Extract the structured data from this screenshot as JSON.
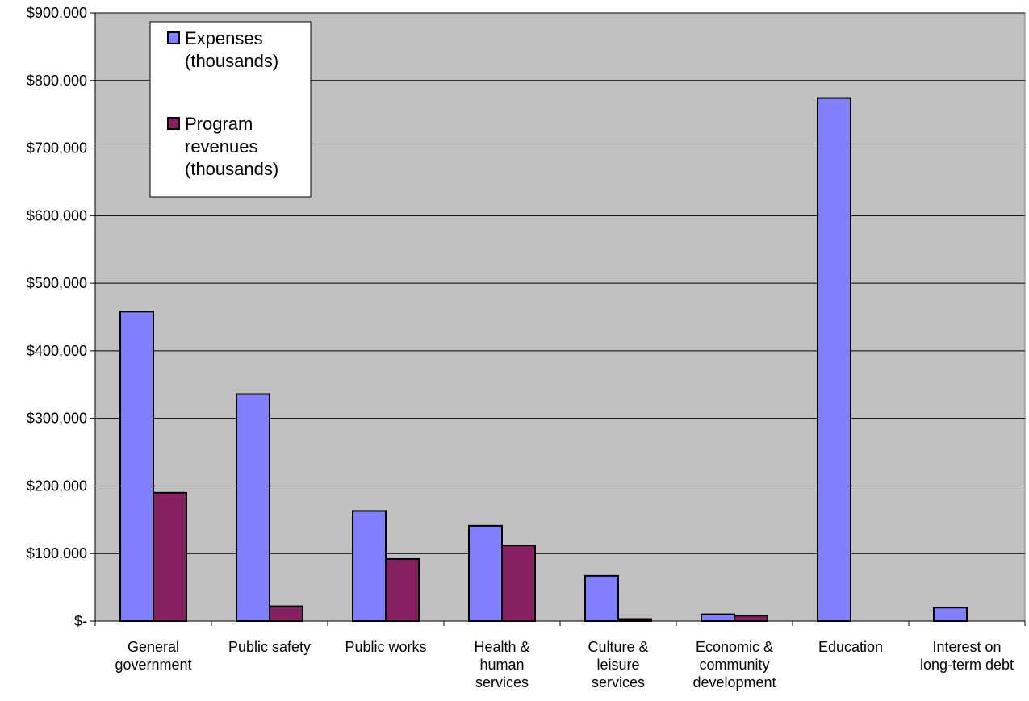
{
  "chart_data": {
    "type": "bar",
    "categories": [
      [
        "General",
        "government"
      ],
      [
        "Public safety"
      ],
      [
        "Public works"
      ],
      [
        "Health &",
        "human",
        "services"
      ],
      [
        "Culture &",
        "leisure",
        "services"
      ],
      [
        "Economic &",
        "community",
        "development"
      ],
      [
        "Education"
      ],
      [
        "Interest on",
        "long-term debt"
      ]
    ],
    "series": [
      {
        "name": "Expenses (thousands)",
        "legend_lines": [
          "Expenses",
          "(thousands)"
        ],
        "color": "#8080ff",
        "values": [
          458000,
          336000,
          163000,
          141000,
          67000,
          10000,
          774000,
          20000
        ]
      },
      {
        "name": "Program revenues (thousands)",
        "legend_lines": [
          "Program",
          "revenues",
          "(thousands)"
        ],
        "color": "#862060",
        "values": [
          190000,
          22000,
          92000,
          112000,
          3000,
          8000,
          0,
          0
        ]
      }
    ],
    "yticks": [
      "$-",
      "$100,000",
      "$200,000",
      "$300,000",
      "$400,000",
      "$500,000",
      "$600,000",
      "$700,000",
      "$800,000",
      "$900,000"
    ],
    "ylim": [
      0,
      900000
    ],
    "plot_background": "#c0c0c0",
    "grid": true,
    "legend_position": "top-left"
  }
}
